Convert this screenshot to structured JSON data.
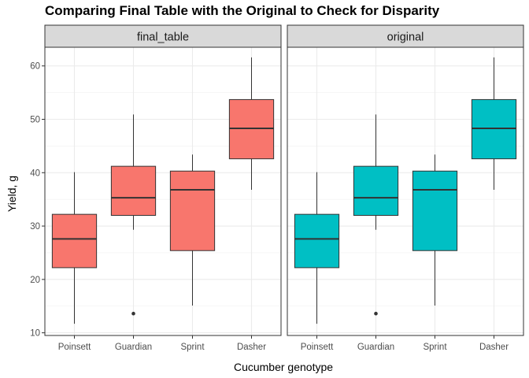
{
  "chart_data": {
    "type": "boxplot",
    "title": "Comparing Final Table with the Original to Check for Disparity",
    "xlabel": "Cucumber genotype",
    "ylabel": "Yield, g",
    "categories": [
      "Poinsett",
      "Guardian",
      "Sprint",
      "Dasher"
    ],
    "ylim": [
      9.5,
      63.5
    ],
    "yticks": [
      "10",
      "20",
      "30",
      "40",
      "50",
      "60"
    ],
    "grid": true,
    "legend": "none",
    "facets": [
      {
        "label": "final_table",
        "color": "#F8766D",
        "boxes": [
          {
            "category": "Poinsett",
            "min": 11.7,
            "q1": 22.2,
            "median": 27.6,
            "q3": 32.2,
            "max": 40.1,
            "outliers": []
          },
          {
            "category": "Guardian",
            "min": 29.3,
            "q1": 32.0,
            "median": 35.3,
            "q3": 41.2,
            "max": 50.9,
            "outliers": [
              13.6
            ]
          },
          {
            "category": "Sprint",
            "min": 15.1,
            "q1": 25.4,
            "median": 36.8,
            "q3": 40.3,
            "max": 43.4,
            "outliers": []
          },
          {
            "category": "Dasher",
            "min": 36.8,
            "q1": 42.6,
            "median": 48.3,
            "q3": 53.7,
            "max": 61.6,
            "outliers": []
          }
        ]
      },
      {
        "label": "original",
        "color": "#00BFC4",
        "boxes": [
          {
            "category": "Poinsett",
            "min": 11.7,
            "q1": 22.2,
            "median": 27.6,
            "q3": 32.2,
            "max": 40.1,
            "outliers": []
          },
          {
            "category": "Guardian",
            "min": 29.3,
            "q1": 32.0,
            "median": 35.3,
            "q3": 41.2,
            "max": 50.9,
            "outliers": [
              13.6
            ]
          },
          {
            "category": "Sprint",
            "min": 15.1,
            "q1": 25.4,
            "median": 36.8,
            "q3": 40.3,
            "max": 43.4,
            "outliers": []
          },
          {
            "category": "Dasher",
            "min": 36.8,
            "q1": 42.6,
            "median": 48.3,
            "q3": 53.7,
            "max": 61.6,
            "outliers": []
          }
        ]
      }
    ]
  }
}
